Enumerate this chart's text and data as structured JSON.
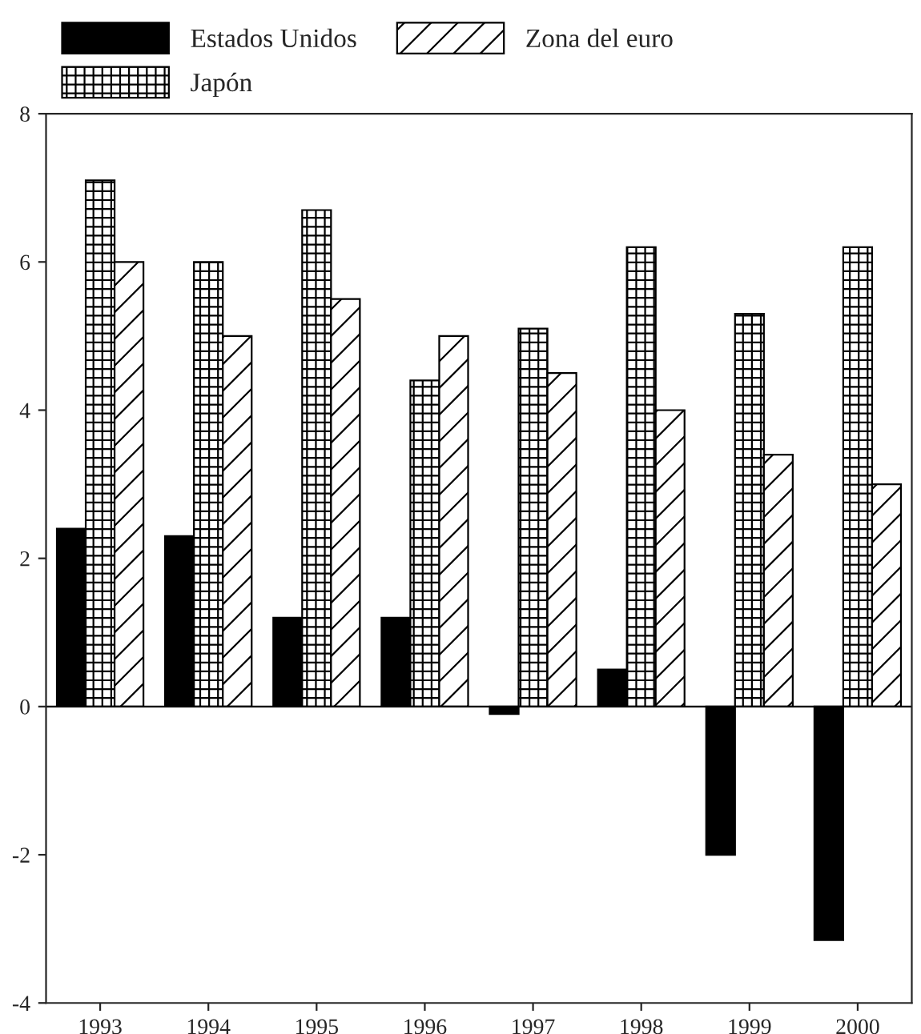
{
  "chart_data": {
    "type": "bar",
    "categories": [
      "1993",
      "1994",
      "1995",
      "1996",
      "1997",
      "1998",
      "1999",
      "2000"
    ],
    "series": [
      {
        "name": "Estados Unidos",
        "color": "#000000",
        "values": [
          2.4,
          2.3,
          1.2,
          1.2,
          -0.1,
          0.5,
          -2.0,
          -3.15
        ]
      },
      {
        "name": "Japón",
        "color": "#000000",
        "values": [
          7.1,
          6.0,
          6.7,
          4.4,
          5.1,
          6.2,
          5.3,
          6.2
        ]
      },
      {
        "name": "Zona del euro",
        "color": "#000000",
        "values": [
          6.0,
          5.0,
          5.5,
          5.0,
          4.5,
          4.0,
          3.4,
          3.0
        ]
      }
    ],
    "ylim": [
      -4,
      8
    ],
    "yticks": [
      -4,
      -2,
      0,
      2,
      4,
      6,
      8
    ],
    "ref_lines": [
      {
        "axis": "y",
        "value": 0,
        "label": null
      }
    ],
    "grid": false,
    "legend": "top left"
  }
}
